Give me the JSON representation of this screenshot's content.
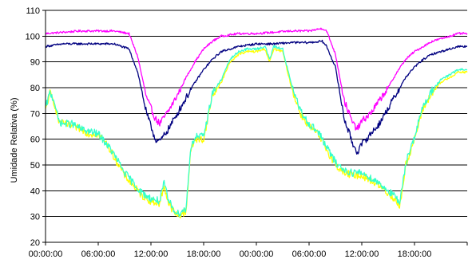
{
  "chart_data": {
    "type": "line",
    "title": "",
    "xlabel": "",
    "ylabel": "Umidade Relativa (%)",
    "ylim": [
      20,
      110
    ],
    "y_ticks": [
      "20",
      "30",
      "40",
      "50",
      "60",
      "70",
      "80",
      "90",
      "100",
      "110"
    ],
    "xlim_hours": [
      0,
      48
    ],
    "x_tick_labels": [
      "00:00:00",
      "06:00:00",
      "12:00:00",
      "18:00:00",
      "00:00:00",
      "06:00:00",
      "12:00:00",
      "18:00:00"
    ],
    "grid": "horizontal",
    "legend": "none",
    "series": [
      {
        "color": "#ff00ff",
        "x": [
          0,
          2,
          4,
          6,
          7.8,
          9.5,
          10.5,
          11.5,
          12.5,
          13,
          14,
          15,
          16,
          17,
          18,
          19,
          20,
          22,
          24,
          26,
          28,
          30,
          31.5,
          32,
          33,
          34,
          35,
          35.5,
          36,
          37,
          38,
          39,
          40,
          41,
          42,
          43,
          44,
          45,
          46,
          47,
          48
        ],
        "y": [
          101,
          101.5,
          102,
          102,
          102,
          101,
          92,
          76,
          68,
          66,
          71,
          77,
          84,
          90,
          95,
          98,
          100,
          101,
          101,
          101.5,
          102,
          102,
          103,
          102,
          93,
          75,
          66,
          64,
          67,
          70,
          75,
          80,
          86,
          91,
          94,
          96,
          98,
          99,
          100,
          101,
          101
        ]
      },
      {
        "color": "#000080",
        "x": [
          0,
          2,
          4,
          6,
          7.8,
          9.5,
          10.5,
          11.5,
          12.5,
          13,
          14,
          15,
          16,
          17,
          18,
          19,
          20,
          22,
          24,
          26,
          28,
          30,
          31.5,
          32,
          33,
          34,
          35,
          35.5,
          36,
          37,
          38,
          39,
          40,
          41,
          42,
          43,
          44,
          45,
          46,
          47,
          48
        ],
        "y": [
          96,
          97,
          97,
          97,
          97,
          95,
          86,
          70,
          60,
          59,
          64,
          70,
          76,
          82,
          87,
          91,
          94,
          96,
          97,
          97,
          97.5,
          97.5,
          98,
          96,
          88,
          68,
          58,
          55,
          58,
          62,
          66,
          72,
          78,
          84,
          88,
          91,
          93,
          94,
          95,
          96,
          96
        ]
      },
      {
        "color": "#ffff00",
        "x": [
          0,
          0.5,
          1,
          1.5,
          2,
          3,
          4,
          5,
          6,
          7,
          8,
          9,
          10,
          11,
          12,
          13,
          13.5,
          14,
          15,
          15.5,
          16,
          16.5,
          17,
          18,
          19,
          20,
          21,
          22,
          23,
          24,
          25,
          25.5,
          26,
          27,
          28,
          29,
          30,
          31,
          32,
          33,
          34,
          35,
          36,
          37,
          38,
          39,
          40,
          40.3,
          41,
          42,
          43,
          44,
          45,
          46,
          47,
          48
        ],
        "y": [
          71,
          78,
          74,
          67,
          66,
          65,
          64,
          62,
          62,
          58,
          52,
          46,
          42,
          38,
          36,
          35,
          42,
          35,
          30,
          31,
          32,
          55,
          60,
          60,
          77,
          82,
          90,
          93,
          94,
          94,
          95,
          90,
          95,
          94,
          80,
          70,
          65,
          62,
          56,
          50,
          47,
          46,
          46,
          44,
          42,
          39,
          36,
          33,
          50,
          60,
          72,
          78,
          82,
          84,
          86,
          86
        ]
      },
      {
        "color": "#33ffcc",
        "x": [
          0,
          0.5,
          1,
          1.5,
          2,
          3,
          4,
          5,
          6,
          7,
          8,
          9,
          10,
          11,
          12,
          13,
          13.5,
          14,
          15,
          15.5,
          16,
          16.5,
          17,
          18,
          19,
          20,
          21,
          22,
          23,
          24,
          25,
          25.5,
          26,
          27,
          28,
          29,
          30,
          31,
          32,
          33,
          34,
          35,
          36,
          37,
          38,
          39,
          40,
          40.3,
          41,
          42,
          43,
          44,
          45,
          46,
          47,
          48
        ],
        "y": [
          72,
          78,
          75,
          67,
          66,
          66,
          64,
          63,
          62,
          58,
          53,
          47,
          43,
          39,
          37,
          36,
          43,
          36,
          31,
          32,
          33,
          56,
          61,
          61,
          78,
          83,
          91,
          94,
          95,
          95,
          96,
          91,
          96,
          95,
          81,
          71,
          66,
          63,
          57,
          51,
          48,
          47,
          47,
          45,
          43,
          40,
          37,
          34,
          51,
          61,
          73,
          79,
          83,
          85,
          87,
          87
        ]
      }
    ]
  }
}
